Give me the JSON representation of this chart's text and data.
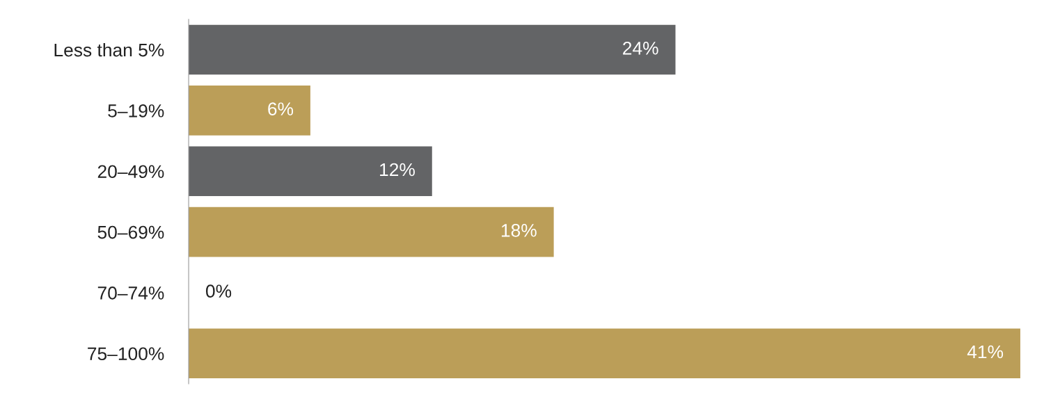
{
  "chart_data": {
    "type": "bar",
    "orientation": "horizontal",
    "categories": [
      "Less than 5%",
      "5–19%",
      "20–49%",
      "50–69%",
      "70–74%",
      "75–100%"
    ],
    "values": [
      24,
      6,
      12,
      18,
      0,
      41
    ],
    "colors": [
      "#636466",
      "#bb9e58",
      "#636466",
      "#bb9e58",
      "#bb9e58",
      "#bb9e58"
    ],
    "value_labels": [
      "24%",
      "6%",
      "12%",
      "18%",
      "0%",
      "41%"
    ],
    "grid": false,
    "legend": false
  }
}
